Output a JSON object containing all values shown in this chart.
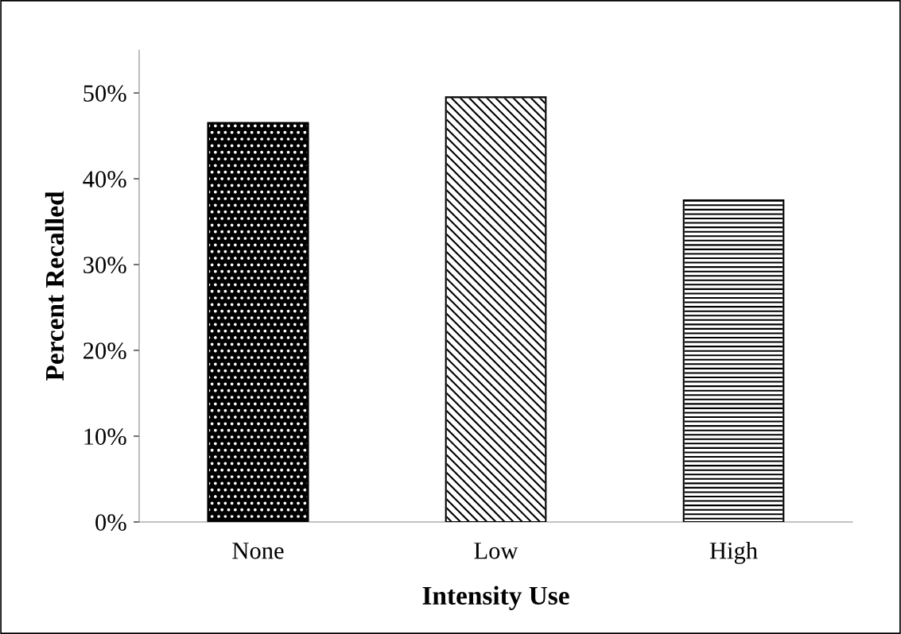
{
  "chart_data": {
    "type": "bar",
    "xlabel": "Intensity Use",
    "ylabel": "Percent Recalled",
    "categories": [
      "None",
      "Low",
      "High"
    ],
    "values": [
      46.5,
      49.5,
      37.5
    ],
    "colors": [
      "#000000",
      "#ffffff",
      "#ffffff"
    ],
    "ylim": [
      0,
      55
    ],
    "yticks": [
      {
        "value": 0,
        "label": "0%"
      },
      {
        "value": 10,
        "label": "10%"
      },
      {
        "value": 20,
        "label": "20%"
      },
      {
        "value": 30,
        "label": "30%"
      },
      {
        "value": 40,
        "label": "40%"
      },
      {
        "value": 50,
        "label": "50%"
      }
    ],
    "grid": false
  }
}
